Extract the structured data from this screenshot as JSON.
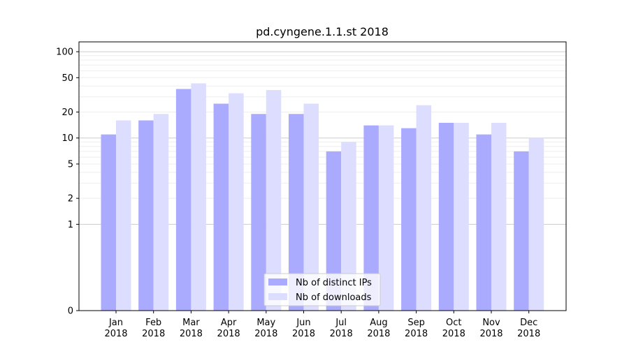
{
  "chart_data": {
    "type": "bar",
    "title": "pd.cyngene.1.1.st 2018",
    "xlabel": "",
    "ylabel": "",
    "yscale": "symlog",
    "ylim": [
      0,
      130
    ],
    "yticks": [
      0,
      1,
      2,
      5,
      10,
      20,
      50,
      100
    ],
    "yticklabels": [
      "0",
      "1",
      "2",
      "5",
      "10",
      "20",
      "50",
      "100"
    ],
    "categories": [
      "Jan\n2018",
      "Feb\n2018",
      "Mar\n2018",
      "Apr\n2018",
      "May\n2018",
      "Jun\n2018",
      "Jul\n2018",
      "Aug\n2018",
      "Sep\n2018",
      "Oct\n2018",
      "Nov\n2018",
      "Dec\n2018"
    ],
    "series": [
      {
        "name": "Nb of distinct IPs",
        "color": "#aaaaff",
        "values": [
          11,
          16,
          37,
          25,
          19,
          19,
          7,
          14,
          13,
          15,
          11,
          7
        ]
      },
      {
        "name": "Nb of downloads",
        "color": "#ddddff",
        "values": [
          16,
          19,
          43,
          33,
          36,
          25,
          9,
          14,
          24,
          15,
          15,
          10
        ]
      }
    ],
    "grid": true,
    "legend_position": "bottom-center"
  }
}
